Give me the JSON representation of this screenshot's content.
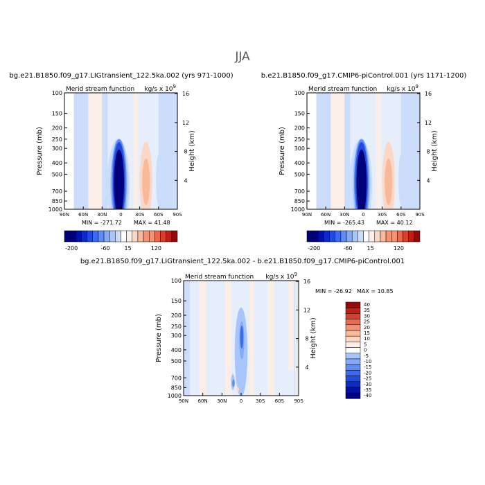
{
  "page_title": "JJA",
  "colors": {
    "neg_scale": [
      "#00007a",
      "#0010a8",
      "#0a2cc8",
      "#1f4be0",
      "#3a6bf0",
      "#5d8cf5",
      "#82aaf8",
      "#a7c5fa",
      "#cbddfb",
      "#e6eefc"
    ],
    "pos_scale": [
      "#fbeee6",
      "#fbd8c5",
      "#f8b89a",
      "#f29474",
      "#e9694f",
      "#d8402e",
      "#bf1f16",
      "#940a0a"
    ]
  },
  "chart_data": [
    {
      "type": "heatmap",
      "id": "panel1",
      "title": "bg.e21.B1850.f09_g17.LIGtransient_122.5ka.002 (yrs 971-1000)",
      "subtitle_left": "Merid stream function",
      "subtitle_right": "kg/s x 10",
      "units_exponent": "9",
      "ylabel": "Pressure (mb)",
      "ylabel_right": "Height (km)",
      "xticks": [
        "90N",
        "60N",
        "30N",
        "0",
        "30S",
        "60S",
        "90S"
      ],
      "yticks": [
        "100",
        "150",
        "200",
        "250",
        "300",
        "400",
        "500",
        "700",
        "850",
        "1000"
      ],
      "ytick_values": [
        100,
        150,
        200,
        250,
        300,
        400,
        500,
        700,
        850,
        1000
      ],
      "height_ticks": [
        "16",
        "12",
        "8",
        "4"
      ],
      "height_values": [
        16,
        12,
        8,
        4
      ],
      "xlim": [
        90,
        -90
      ],
      "ylim": [
        1000,
        100
      ],
      "min_label": "MIN = -271.72",
      "max_label": "MAX = 41.48",
      "levels": [
        -200,
        -180,
        -160,
        -140,
        -120,
        -100,
        -80,
        -60,
        -40,
        -20,
        0,
        15,
        30,
        45,
        60,
        75,
        90,
        105,
        120,
        135
      ],
      "colorbar_labels": [
        "-200",
        "-60",
        "15",
        "120"
      ],
      "cells": [
        {
          "lat0": 90,
          "lat1": 75,
          "p0": 100,
          "p1": 1000,
          "v": 0
        },
        {
          "lat0": 75,
          "lat1": 52,
          "p0": 100,
          "p1": 1000,
          "v": -3
        },
        {
          "lat0": 52,
          "lat1": 30,
          "p0": 100,
          "p1": 1000,
          "v": 4
        },
        {
          "lat0": 30,
          "lat1": 21,
          "p0": 100,
          "p1": 1000,
          "v": -3
        },
        {
          "lat0": -20,
          "lat1": -28,
          "p0": 100,
          "p1": 1000,
          "v": 4
        },
        {
          "lat0": -60,
          "lat1": -90,
          "p0": 100,
          "p1": 1000,
          "v": -3
        }
      ],
      "blobs": [
        {
          "lat": 4,
          "p": 620,
          "rlat": 18,
          "rp": 460,
          "v": -10
        },
        {
          "lat": 3,
          "p": 600,
          "rlat": 14,
          "rp": 430,
          "v": -40
        },
        {
          "lat": 3,
          "p": 590,
          "rlat": 12,
          "rp": 410,
          "v": -80
        },
        {
          "lat": 3,
          "p": 580,
          "rlat": 10,
          "rp": 380,
          "v": -130
        },
        {
          "lat": 3,
          "p": 590,
          "rlat": 8,
          "rp": 340,
          "v": -180
        },
        {
          "lat": 3,
          "p": 620,
          "rlat": 6,
          "rp": 320,
          "v": -220
        },
        {
          "lat": -40,
          "p": 570,
          "rlat": 10,
          "rp": 370,
          "v": 20
        },
        {
          "lat": -40,
          "p": 580,
          "rlat": 6,
          "rp": 250,
          "v": 40
        },
        {
          "lat": -60,
          "p": 560,
          "rlat": 4,
          "rp": 260,
          "v": -10
        }
      ]
    },
    {
      "type": "heatmap",
      "id": "panel2",
      "title": "b.e21.B1850.f09_g17.CMIP6-piControl.001 (yrs 1171-1200)",
      "subtitle_left": "Merid stream function",
      "subtitle_right": "kg/s x 10",
      "units_exponent": "9",
      "ylabel": "Pressure (mb)",
      "ylabel_right": "Height (km)",
      "xticks": [
        "90N",
        "60N",
        "30N",
        "0",
        "30S",
        "60S",
        "90S"
      ],
      "yticks": [
        "100",
        "150",
        "200",
        "250",
        "300",
        "400",
        "500",
        "700",
        "850",
        "1000"
      ],
      "ytick_values": [
        100,
        150,
        200,
        250,
        300,
        400,
        500,
        700,
        850,
        1000
      ],
      "height_ticks": [
        "16",
        "12",
        "8",
        "4"
      ],
      "height_values": [
        16,
        12,
        8,
        4
      ],
      "xlim": [
        90,
        -90
      ],
      "ylim": [
        1000,
        100
      ],
      "min_label": "MIN = -265.43",
      "max_label": "MAX = 40.12",
      "levels": [
        -200,
        -180,
        -160,
        -140,
        -120,
        -100,
        -80,
        -60,
        -40,
        -20,
        0,
        15,
        30,
        45,
        60,
        75,
        90,
        105,
        120,
        135
      ],
      "colorbar_labels": [
        "-200",
        "-60",
        "15",
        "120"
      ],
      "cells": [
        {
          "lat0": 90,
          "lat1": 75,
          "p0": 100,
          "p1": 1000,
          "v": 0
        },
        {
          "lat0": 75,
          "lat1": 52,
          "p0": 100,
          "p1": 1000,
          "v": -3
        },
        {
          "lat0": 52,
          "lat1": 30,
          "p0": 100,
          "p1": 1000,
          "v": 4
        },
        {
          "lat0": 30,
          "lat1": 21,
          "p0": 100,
          "p1": 1000,
          "v": -3
        },
        {
          "lat0": -20,
          "lat1": -28,
          "p0": 100,
          "p1": 1000,
          "v": 4
        },
        {
          "lat0": -60,
          "lat1": -90,
          "p0": 100,
          "p1": 1000,
          "v": -3
        }
      ],
      "blobs": [
        {
          "lat": 4,
          "p": 620,
          "rlat": 18,
          "rp": 460,
          "v": -10
        },
        {
          "lat": 3,
          "p": 600,
          "rlat": 14,
          "rp": 430,
          "v": -40
        },
        {
          "lat": 3,
          "p": 590,
          "rlat": 12,
          "rp": 410,
          "v": -80
        },
        {
          "lat": 3,
          "p": 580,
          "rlat": 10,
          "rp": 380,
          "v": -130
        },
        {
          "lat": 3,
          "p": 590,
          "rlat": 8,
          "rp": 340,
          "v": -180
        },
        {
          "lat": 3,
          "p": 620,
          "rlat": 6,
          "rp": 300,
          "v": -220
        },
        {
          "lat": -40,
          "p": 570,
          "rlat": 10,
          "rp": 370,
          "v": 20
        },
        {
          "lat": -40,
          "p": 580,
          "rlat": 6,
          "rp": 250,
          "v": 40
        },
        {
          "lat": -60,
          "p": 560,
          "rlat": 4,
          "rp": 260,
          "v": -10
        }
      ]
    },
    {
      "type": "heatmap",
      "id": "panel3",
      "title": "bg.e21.B1850.f09_g17.LIGtransient_122.5ka.002 - b.e21.B1850.f09_g17.CMIP6-piControl.001",
      "subtitle_left": "Merid stream function",
      "subtitle_right": "kg/s x 10",
      "units_exponent": "9",
      "ylabel": "Pressure (mb)",
      "ylabel_right": "Height (km)",
      "xticks": [
        "90N",
        "60N",
        "30N",
        "0",
        "30S",
        "60S",
        "90S"
      ],
      "yticks": [
        "100",
        "150",
        "200",
        "250",
        "300",
        "400",
        "500",
        "700",
        "850",
        "1000"
      ],
      "ytick_values": [
        100,
        150,
        200,
        250,
        300,
        400,
        500,
        700,
        850,
        1000
      ],
      "height_ticks": [
        "16",
        "12",
        "8",
        "4"
      ],
      "height_values": [
        16,
        12,
        8,
        4
      ],
      "xlim": [
        90,
        -90
      ],
      "ylim": [
        1000,
        100
      ],
      "min_label": "MIN = -26.92",
      "max_label": "MAX = 10.85",
      "levels": [
        -40,
        -35,
        -30,
        -25,
        -20,
        -15,
        -10,
        -5,
        0,
        5,
        10,
        15,
        20,
        25,
        30,
        35,
        40
      ],
      "legend_labels": [
        "40",
        "35",
        "30",
        "25",
        "20",
        "15",
        "10",
        "5",
        "0",
        "-5",
        "-10",
        "-15",
        "-20",
        "-25",
        "-30",
        "-35",
        "-40"
      ],
      "cells": [
        {
          "lat0": 90,
          "lat1": 80,
          "p0": 100,
          "p1": 1000,
          "v": -2
        },
        {
          "lat0": 66,
          "lat1": 55,
          "p0": 100,
          "p1": 1000,
          "v": 2
        },
        {
          "lat0": 25,
          "lat1": 15,
          "p0": 100,
          "p1": 1000,
          "v": 2
        },
        {
          "lat0": -13,
          "lat1": -20,
          "p0": 100,
          "p1": 1000,
          "v": 2
        },
        {
          "lat0": -42,
          "lat1": -52,
          "p0": 100,
          "p1": 1000,
          "v": 2
        },
        {
          "lat0": -74,
          "lat1": -82,
          "p0": 100,
          "p1": 600,
          "v": 2
        },
        {
          "lat0": -86,
          "lat1": -90,
          "p0": 100,
          "p1": 1000,
          "v": 0
        }
      ],
      "blobs": [
        {
          "lat": 0,
          "p": 420,
          "rlat": 10,
          "rp": 300,
          "v": -6
        },
        {
          "lat": -1,
          "p": 330,
          "rlat": 4,
          "rp": 120,
          "v": -12
        },
        {
          "lat": -1,
          "p": 310,
          "rlat": 2.5,
          "rp": 70,
          "v": -20
        },
        {
          "lat": 13,
          "p": 760,
          "rlat": 3,
          "rp": 120,
          "v": -8
        },
        {
          "lat": 12,
          "p": 780,
          "rlat": 2,
          "rp": 60,
          "v": -16
        },
        {
          "lat": 5,
          "p": 880,
          "rlat": 2,
          "rp": 40,
          "v": 8
        }
      ]
    }
  ]
}
